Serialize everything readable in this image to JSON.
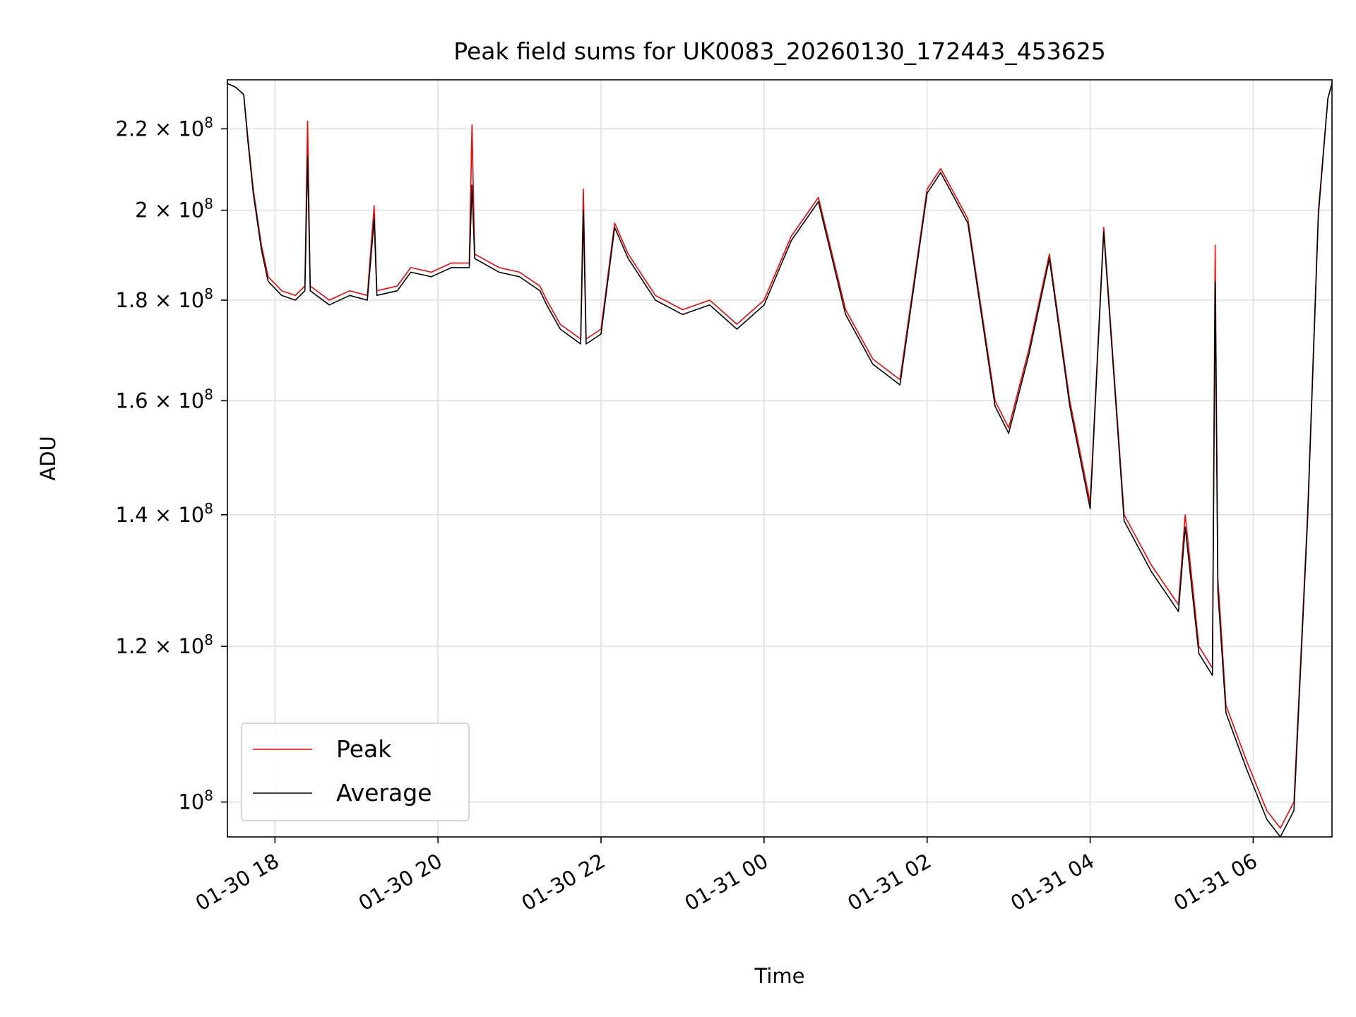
{
  "chart_data": {
    "type": "line",
    "title": "Peak field sums for UK0083_20260130_172443_453625",
    "xlabel": "Time",
    "ylabel": "ADU",
    "y_scale": "log",
    "ylim": [
      96000000,
      233000000
    ],
    "xlim": [
      "2026-01-30 17:25",
      "2026-01-31 06:58"
    ],
    "grid": true,
    "legend_position": "lower-left",
    "x_ticks": [
      {
        "t": "2026-01-30 18:00",
        "label": "01-30 18"
      },
      {
        "t": "2026-01-30 20:00",
        "label": "01-30 20"
      },
      {
        "t": "2026-01-30 22:00",
        "label": "01-30 22"
      },
      {
        "t": "2026-01-31 00:00",
        "label": "01-31 00"
      },
      {
        "t": "2026-01-31 02:00",
        "label": "01-31 02"
      },
      {
        "t": "2026-01-31 04:00",
        "label": "01-31 04"
      },
      {
        "t": "2026-01-31 06:00",
        "label": "01-31 06"
      }
    ],
    "y_ticks": [
      {
        "v": 100000000,
        "mant": "",
        "exp": "8"
      },
      {
        "v": 120000000,
        "mant": "1.2",
        "exp": "8"
      },
      {
        "v": 140000000,
        "mant": "1.4",
        "exp": "8"
      },
      {
        "v": 160000000,
        "mant": "1.6",
        "exp": "8"
      },
      {
        "v": 180000000,
        "mant": "1.8",
        "exp": "8"
      },
      {
        "v": 200000000,
        "mant": "2",
        "exp": "8"
      },
      {
        "v": 220000000,
        "mant": "2.2",
        "exp": "8"
      }
    ],
    "series": [
      {
        "name": "Peak",
        "color": "#ff0000",
        "points": [
          [
            "2026-01-30 17:25",
            232000000
          ],
          [
            "2026-01-30 17:31",
            231000000
          ],
          [
            "2026-01-30 17:37",
            229000000
          ],
          [
            "2026-01-30 17:40",
            218000000
          ],
          [
            "2026-01-30 17:44",
            205000000
          ],
          [
            "2026-01-30 17:50",
            192000000
          ],
          [
            "2026-01-30 17:55",
            185000000
          ],
          [
            "2026-01-30 18:05",
            182000000
          ],
          [
            "2026-01-30 18:15",
            181000000
          ],
          [
            "2026-01-30 18:22",
            183000000
          ],
          [
            "2026-01-30 18:24",
            222000000
          ],
          [
            "2026-01-30 18:26",
            183000000
          ],
          [
            "2026-01-30 18:40",
            180000000
          ],
          [
            "2026-01-30 18:55",
            182000000
          ],
          [
            "2026-01-30 19:08",
            181000000
          ],
          [
            "2026-01-30 19:13",
            201000000
          ],
          [
            "2026-01-30 19:15",
            182000000
          ],
          [
            "2026-01-30 19:30",
            183000000
          ],
          [
            "2026-01-30 19:40",
            187000000
          ],
          [
            "2026-01-30 19:55",
            186000000
          ],
          [
            "2026-01-30 20:10",
            188000000
          ],
          [
            "2026-01-30 20:23",
            188000000
          ],
          [
            "2026-01-30 20:25",
            221000000
          ],
          [
            "2026-01-30 20:27",
            190000000
          ],
          [
            "2026-01-30 20:45",
            187000000
          ],
          [
            "2026-01-30 21:00",
            186000000
          ],
          [
            "2026-01-30 21:15",
            183000000
          ],
          [
            "2026-01-30 21:20",
            180000000
          ],
          [
            "2026-01-30 21:30",
            175000000
          ],
          [
            "2026-01-30 21:45",
            172000000
          ],
          [
            "2026-01-30 21:47",
            205000000
          ],
          [
            "2026-01-30 21:49",
            172000000
          ],
          [
            "2026-01-30 22:00",
            174000000
          ],
          [
            "2026-01-30 22:10",
            197000000
          ],
          [
            "2026-01-30 22:20",
            190000000
          ],
          [
            "2026-01-30 22:40",
            181000000
          ],
          [
            "2026-01-30 23:00",
            178000000
          ],
          [
            "2026-01-30 23:20",
            180000000
          ],
          [
            "2026-01-30 23:40",
            175000000
          ],
          [
            "2026-01-31 00:00",
            180000000
          ],
          [
            "2026-01-31 00:20",
            194000000
          ],
          [
            "2026-01-31 00:40",
            203000000
          ],
          [
            "2026-01-31 01:00",
            178000000
          ],
          [
            "2026-01-31 01:20",
            168000000
          ],
          [
            "2026-01-31 01:40",
            164000000
          ],
          [
            "2026-01-31 02:00",
            205000000
          ],
          [
            "2026-01-31 02:10",
            210000000
          ],
          [
            "2026-01-31 02:30",
            198000000
          ],
          [
            "2026-01-31 02:50",
            160000000
          ],
          [
            "2026-01-31 03:00",
            155000000
          ],
          [
            "2026-01-31 03:15",
            170000000
          ],
          [
            "2026-01-31 03:30",
            190000000
          ],
          [
            "2026-01-31 03:45",
            160000000
          ],
          [
            "2026-01-31 04:00",
            142000000
          ],
          [
            "2026-01-31 04:10",
            196000000
          ],
          [
            "2026-01-31 04:25",
            140000000
          ],
          [
            "2026-01-31 04:45",
            132000000
          ],
          [
            "2026-01-31 05:05",
            126000000
          ],
          [
            "2026-01-31 05:10",
            140000000
          ],
          [
            "2026-01-31 05:20",
            120000000
          ],
          [
            "2026-01-31 05:30",
            117000000
          ],
          [
            "2026-01-31 05:32",
            192000000
          ],
          [
            "2026-01-31 05:34",
            130000000
          ],
          [
            "2026-01-31 05:40",
            112000000
          ],
          [
            "2026-01-31 05:55",
            105000000
          ],
          [
            "2026-01-31 06:10",
            99000000
          ],
          [
            "2026-01-31 06:20",
            97000000
          ],
          [
            "2026-01-31 06:30",
            100000000
          ],
          [
            "2026-01-31 06:40",
            140000000
          ],
          [
            "2026-01-31 06:48",
            200000000
          ],
          [
            "2026-01-31 06:55",
            228000000
          ],
          [
            "2026-01-31 06:58",
            232000000
          ]
        ]
      },
      {
        "name": "Average",
        "color": "#000000",
        "points": [
          [
            "2026-01-30 17:25",
            232000000
          ],
          [
            "2026-01-30 17:31",
            231000000
          ],
          [
            "2026-01-30 17:37",
            229000000
          ],
          [
            "2026-01-30 17:40",
            217000000
          ],
          [
            "2026-01-30 17:44",
            204000000
          ],
          [
            "2026-01-30 17:50",
            191000000
          ],
          [
            "2026-01-30 17:55",
            184000000
          ],
          [
            "2026-01-30 18:05",
            181000000
          ],
          [
            "2026-01-30 18:15",
            180000000
          ],
          [
            "2026-01-30 18:22",
            182000000
          ],
          [
            "2026-01-30 18:24",
            213000000
          ],
          [
            "2026-01-30 18:26",
            182000000
          ],
          [
            "2026-01-30 18:40",
            179000000
          ],
          [
            "2026-01-30 18:55",
            181000000
          ],
          [
            "2026-01-30 19:08",
            180000000
          ],
          [
            "2026-01-30 19:13",
            198000000
          ],
          [
            "2026-01-30 19:15",
            181000000
          ],
          [
            "2026-01-30 19:30",
            182000000
          ],
          [
            "2026-01-30 19:40",
            186000000
          ],
          [
            "2026-01-30 19:55",
            185000000
          ],
          [
            "2026-01-30 20:10",
            187000000
          ],
          [
            "2026-01-30 20:23",
            187000000
          ],
          [
            "2026-01-30 20:25",
            206000000
          ],
          [
            "2026-01-30 20:27",
            189000000
          ],
          [
            "2026-01-30 20:45",
            186000000
          ],
          [
            "2026-01-30 21:00",
            185000000
          ],
          [
            "2026-01-30 21:15",
            182000000
          ],
          [
            "2026-01-30 21:20",
            179000000
          ],
          [
            "2026-01-30 21:30",
            174000000
          ],
          [
            "2026-01-30 21:45",
            171000000
          ],
          [
            "2026-01-30 21:47",
            200000000
          ],
          [
            "2026-01-30 21:49",
            171000000
          ],
          [
            "2026-01-30 22:00",
            173000000
          ],
          [
            "2026-01-30 22:10",
            196000000
          ],
          [
            "2026-01-30 22:20",
            189000000
          ],
          [
            "2026-01-30 22:40",
            180000000
          ],
          [
            "2026-01-30 23:00",
            177000000
          ],
          [
            "2026-01-30 23:20",
            179000000
          ],
          [
            "2026-01-30 23:40",
            174000000
          ],
          [
            "2026-01-31 00:00",
            179000000
          ],
          [
            "2026-01-31 00:20",
            193000000
          ],
          [
            "2026-01-31 00:40",
            202000000
          ],
          [
            "2026-01-31 01:00",
            177000000
          ],
          [
            "2026-01-31 01:20",
            167000000
          ],
          [
            "2026-01-31 01:40",
            163000000
          ],
          [
            "2026-01-31 02:00",
            204000000
          ],
          [
            "2026-01-31 02:10",
            209000000
          ],
          [
            "2026-01-31 02:30",
            197000000
          ],
          [
            "2026-01-31 02:50",
            159000000
          ],
          [
            "2026-01-31 03:00",
            154000000
          ],
          [
            "2026-01-31 03:15",
            169000000
          ],
          [
            "2026-01-31 03:30",
            189000000
          ],
          [
            "2026-01-31 03:45",
            159000000
          ],
          [
            "2026-01-31 04:00",
            141000000
          ],
          [
            "2026-01-31 04:10",
            195000000
          ],
          [
            "2026-01-31 04:25",
            139000000
          ],
          [
            "2026-01-31 04:45",
            131000000
          ],
          [
            "2026-01-31 05:05",
            125000000
          ],
          [
            "2026-01-31 05:10",
            138000000
          ],
          [
            "2026-01-31 05:20",
            119000000
          ],
          [
            "2026-01-31 05:30",
            116000000
          ],
          [
            "2026-01-31 05:32",
            184000000
          ],
          [
            "2026-01-31 05:34",
            128000000
          ],
          [
            "2026-01-31 05:40",
            111000000
          ],
          [
            "2026-01-31 05:55",
            104000000
          ],
          [
            "2026-01-31 06:10",
            98000000
          ],
          [
            "2026-01-31 06:20",
            96000000
          ],
          [
            "2026-01-31 06:30",
            99000000
          ],
          [
            "2026-01-31 06:40",
            139000000
          ],
          [
            "2026-01-31 06:48",
            199000000
          ],
          [
            "2026-01-31 06:55",
            228000000
          ],
          [
            "2026-01-31 06:58",
            232000000
          ]
        ]
      }
    ]
  }
}
